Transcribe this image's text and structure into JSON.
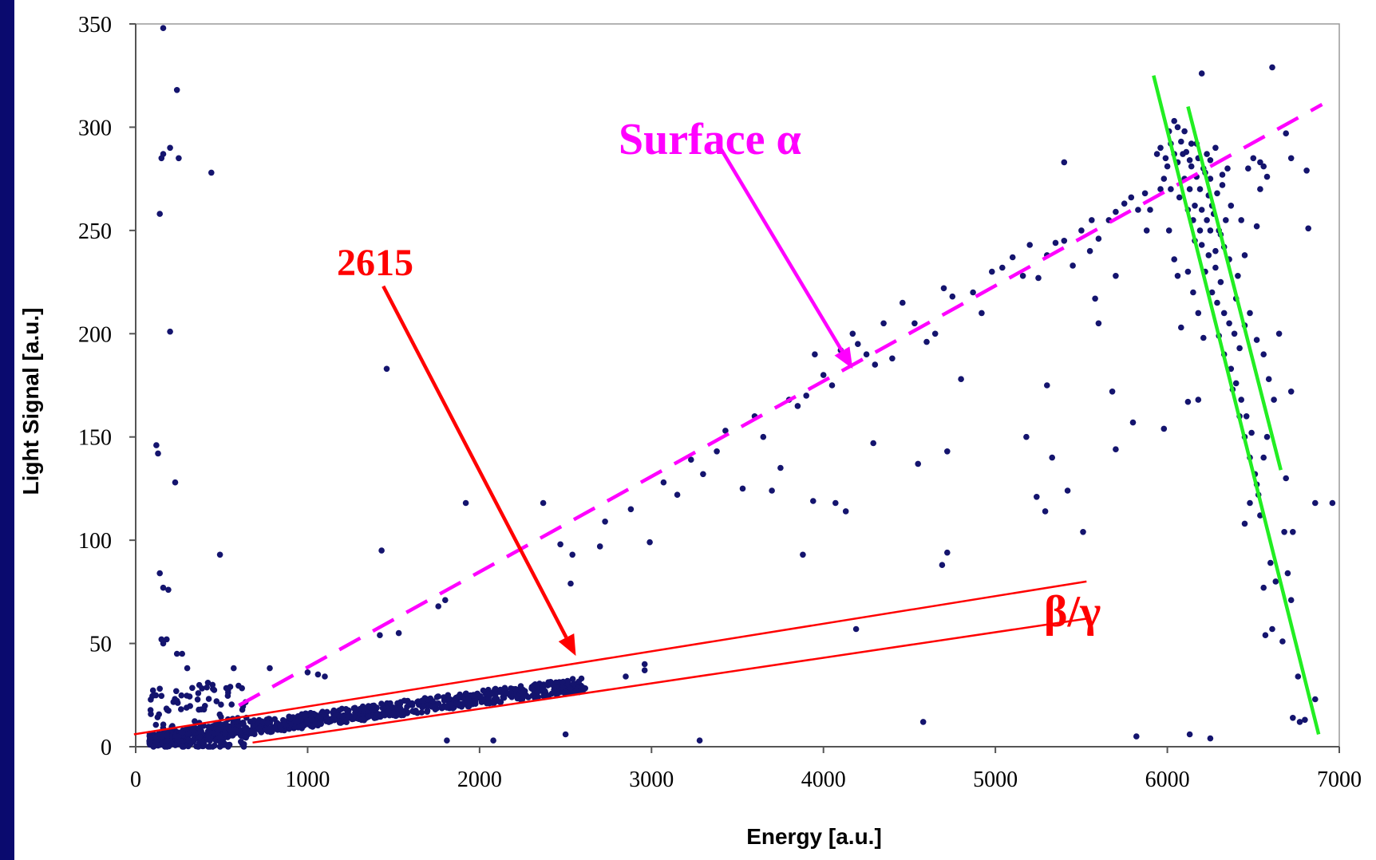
{
  "chart_data": {
    "type": "scatter",
    "xlabel": "Energy   [a.u.]",
    "ylabel": "Light Signal  [a.u.]",
    "xlim": [
      0,
      7000
    ],
    "ylim": [
      0,
      350
    ],
    "x_ticks": [
      "0",
      "1000",
      "2000",
      "3000",
      "4000",
      "5000",
      "6000",
      "7000"
    ],
    "y_ticks": [
      "0",
      "50",
      "100",
      "150",
      "200",
      "250",
      "300",
      "350"
    ],
    "grid": false,
    "marker_color": "#14146e",
    "annotations": {
      "surface_alpha": {
        "text": "Surface α",
        "color": "#ff00ff"
      },
      "line_2615": {
        "text": "2615",
        "color": "#ff0000"
      },
      "beta_gamma": {
        "text": "β/γ",
        "color": "#ff0000"
      }
    },
    "lines": [
      {
        "name": "alpha-band",
        "style": "dashed",
        "color": "#ff00ff",
        "x": [
          600,
          6900
        ],
        "y": [
          20,
          311
        ]
      },
      {
        "name": "beta-gamma-upper",
        "style": "solid",
        "color": "#ff0000",
        "x": [
          -10,
          5530
        ],
        "y": [
          6,
          80
        ]
      },
      {
        "name": "beta-gamma-lower",
        "style": "solid",
        "color": "#ff0000",
        "x": [
          680,
          5530
        ],
        "y": [
          2,
          62
        ]
      },
      {
        "name": "green-line-1",
        "style": "solid",
        "color": "#22ee22",
        "x": [
          5920,
          6880
        ],
        "y": [
          325,
          6
        ]
      },
      {
        "name": "green-line-2",
        "style": "solid",
        "color": "#22ee22",
        "x": [
          6120,
          6660
        ],
        "y": [
          310,
          134
        ]
      }
    ],
    "arrows": [
      {
        "name": "surface-alpha-arrow",
        "color": "#ff00ff",
        "from": [
          3400,
          290
        ],
        "to": [
          4170,
          183
        ]
      },
      {
        "name": "line-2615-arrow",
        "color": "#ff0000",
        "from": [
          1440,
          223
        ],
        "to": [
          2560,
          44
        ]
      }
    ],
    "points": [
      [
        160,
        348
      ],
      [
        240,
        318
      ],
      [
        150,
        285
      ],
      [
        160,
        287
      ],
      [
        200,
        290
      ],
      [
        250,
        285
      ],
      [
        140,
        258
      ],
      [
        440,
        278
      ],
      [
        200,
        201
      ],
      [
        1460,
        183
      ],
      [
        120,
        146
      ],
      [
        130,
        142
      ],
      [
        230,
        128
      ],
      [
        490,
        93
      ],
      [
        1430,
        95
      ],
      [
        140,
        84
      ],
      [
        160,
        77
      ],
      [
        190,
        76
      ],
      [
        150,
        52
      ],
      [
        180,
        52
      ],
      [
        160,
        50
      ],
      [
        240,
        45
      ],
      [
        270,
        45
      ],
      [
        300,
        38
      ],
      [
        420,
        31
      ],
      [
        470,
        22
      ],
      [
        570,
        38
      ],
      [
        780,
        38
      ],
      [
        1000,
        36
      ],
      [
        1060,
        35
      ],
      [
        1100,
        34
      ],
      [
        1420,
        54
      ],
      [
        1530,
        55
      ],
      [
        1760,
        68
      ],
      [
        1800,
        71
      ],
      [
        1920,
        118
      ],
      [
        2370,
        118
      ],
      [
        2470,
        98
      ],
      [
        2540,
        93
      ],
      [
        2530,
        79
      ],
      [
        2700,
        97
      ],
      [
        2730,
        109
      ],
      [
        2880,
        115
      ],
      [
        2990,
        99
      ],
      [
        2850,
        34
      ],
      [
        2960,
        37
      ],
      [
        2960,
        40
      ],
      [
        3070,
        128
      ],
      [
        3150,
        122
      ],
      [
        3230,
        139
      ],
      [
        3300,
        132
      ],
      [
        3380,
        143
      ],
      [
        3430,
        153
      ],
      [
        3530,
        125
      ],
      [
        3600,
        160
      ],
      [
        3650,
        150
      ],
      [
        3700,
        124
      ],
      [
        3750,
        135
      ],
      [
        3800,
        168
      ],
      [
        3850,
        165
      ],
      [
        3900,
        170
      ],
      [
        3950,
        190
      ],
      [
        4000,
        180
      ],
      [
        4050,
        175
      ],
      [
        4100,
        192
      ],
      [
        4170,
        200
      ],
      [
        4200,
        195
      ],
      [
        4250,
        190
      ],
      [
        4300,
        185
      ],
      [
        4350,
        205
      ],
      [
        4400,
        188
      ],
      [
        4460,
        215
      ],
      [
        4530,
        205
      ],
      [
        4600,
        196
      ],
      [
        4650,
        200
      ],
      [
        4700,
        222
      ],
      [
        4750,
        218
      ],
      [
        4800,
        178
      ],
      [
        4870,
        220
      ],
      [
        4920,
        210
      ],
      [
        4980,
        230
      ],
      [
        5040,
        232
      ],
      [
        5100,
        237
      ],
      [
        5160,
        228
      ],
      [
        5200,
        243
      ],
      [
        5250,
        227
      ],
      [
        5300,
        238
      ],
      [
        5350,
        244
      ],
      [
        5400,
        245
      ],
      [
        5450,
        233
      ],
      [
        5500,
        250
      ],
      [
        5560,
        255
      ],
      [
        5600,
        246
      ],
      [
        5660,
        255
      ],
      [
        5700,
        259
      ],
      [
        5750,
        263
      ],
      [
        5790,
        266
      ],
      [
        5830,
        260
      ],
      [
        5870,
        268
      ],
      [
        5400,
        283
      ],
      [
        5700,
        228
      ],
      [
        5550,
        240
      ],
      [
        5600,
        205
      ],
      [
        5580,
        217
      ],
      [
        4290,
        147
      ],
      [
        4550,
        137
      ],
      [
        4720,
        143
      ],
      [
        4690,
        88
      ],
      [
        4720,
        94
      ],
      [
        3880,
        93
      ],
      [
        3940,
        119
      ],
      [
        4070,
        118
      ],
      [
        4130,
        114
      ],
      [
        5300,
        175
      ],
      [
        5330,
        140
      ],
      [
        5420,
        124
      ],
      [
        5180,
        150
      ],
      [
        5240,
        121
      ],
      [
        5290,
        114
      ],
      [
        5510,
        104
      ],
      [
        5700,
        144
      ],
      [
        5680,
        172
      ],
      [
        5800,
        157
      ],
      [
        5980,
        154
      ],
      [
        4190,
        57
      ],
      [
        4580,
        12
      ],
      [
        3280,
        3
      ],
      [
        5820,
        5
      ],
      [
        6130,
        6
      ],
      [
        6250,
        4
      ],
      [
        1810,
        3
      ],
      [
        2080,
        3
      ],
      [
        2500,
        6
      ],
      [
        6200,
        326
      ],
      [
        6610,
        329
      ],
      [
        6690,
        297
      ],
      [
        6720,
        285
      ],
      [
        6810,
        279
      ],
      [
        6820,
        251
      ],
      [
        6720,
        172
      ],
      [
        6690,
        130
      ],
      [
        6860,
        118
      ],
      [
        6960,
        118
      ],
      [
        6730,
        104
      ],
      [
        6680,
        104
      ],
      [
        6600,
        89
      ],
      [
        6630,
        80
      ],
      [
        6700,
        84
      ],
      [
        6720,
        71
      ],
      [
        6560,
        77
      ],
      [
        6610,
        57
      ],
      [
        6570,
        54
      ],
      [
        6670,
        51
      ],
      [
        6760,
        34
      ],
      [
        6800,
        13
      ],
      [
        6730,
        14
      ],
      [
        6770,
        12
      ],
      [
        6860,
        23
      ],
      [
        6010,
        298
      ],
      [
        6040,
        303
      ],
      [
        6080,
        293
      ],
      [
        6110,
        288
      ],
      [
        6140,
        281
      ],
      [
        6170,
        276
      ],
      [
        6060,
        283
      ],
      [
        6100,
        275
      ],
      [
        6130,
        270
      ],
      [
        6160,
        262
      ],
      [
        6190,
        270
      ],
      [
        6220,
        278
      ],
      [
        6250,
        284
      ],
      [
        6040,
        287
      ],
      [
        6000,
        281
      ],
      [
        5980,
        275
      ],
      [
        6020,
        270
      ],
      [
        6070,
        266
      ],
      [
        6120,
        260
      ],
      [
        6150,
        255
      ],
      [
        6190,
        250
      ],
      [
        6230,
        255
      ],
      [
        6260,
        262
      ],
      [
        6290,
        268
      ],
      [
        6320,
        272
      ],
      [
        6350,
        280
      ],
      [
        6100,
        298
      ],
      [
        6140,
        292
      ],
      [
        6180,
        285
      ],
      [
        6210,
        280
      ],
      [
        6240,
        267
      ],
      [
        6270,
        258
      ],
      [
        6300,
        250
      ],
      [
        6330,
        242
      ],
      [
        6360,
        236
      ],
      [
        6200,
        243
      ],
      [
        6240,
        238
      ],
      [
        6280,
        232
      ],
      [
        6310,
        225
      ],
      [
        6260,
        220
      ],
      [
        6290,
        215
      ],
      [
        6330,
        210
      ],
      [
        6360,
        205
      ],
      [
        6390,
        200
      ],
      [
        6420,
        193
      ],
      [
        6300,
        199
      ],
      [
        6330,
        190
      ],
      [
        6370,
        183
      ],
      [
        6400,
        176
      ],
      [
        6430,
        168
      ],
      [
        6460,
        160
      ],
      [
        6490,
        152
      ],
      [
        6380,
        173
      ],
      [
        6420,
        160
      ],
      [
        6450,
        150
      ],
      [
        6480,
        140
      ],
      [
        6510,
        132
      ],
      [
        6530,
        122
      ],
      [
        6540,
        112
      ],
      [
        6560,
        140
      ],
      [
        6580,
        150
      ],
      [
        6520,
        127
      ],
      [
        6480,
        118
      ],
      [
        6450,
        108
      ],
      [
        6400,
        217
      ],
      [
        6410,
        228
      ],
      [
        6430,
        255
      ],
      [
        6470,
        280
      ],
      [
        6500,
        285
      ],
      [
        6540,
        283
      ],
      [
        6560,
        281
      ],
      [
        6580,
        276
      ],
      [
        6540,
        270
      ],
      [
        6520,
        252
      ],
      [
        6450,
        238
      ],
      [
        6480,
        210
      ],
      [
        6520,
        197
      ],
      [
        6560,
        190
      ],
      [
        6590,
        178
      ],
      [
        6620,
        168
      ],
      [
        6650,
        200
      ],
      [
        6450,
        204
      ],
      [
        5960,
        290
      ],
      [
        5940,
        287
      ],
      [
        5960,
        270
      ],
      [
        5900,
        260
      ],
      [
        5880,
        250
      ],
      [
        6010,
        250
      ],
      [
        6120,
        230
      ],
      [
        6150,
        220
      ],
      [
        6180,
        210
      ],
      [
        6210,
        198
      ],
      [
        6080,
        203
      ],
      [
        6120,
        167
      ],
      [
        6180,
        168
      ],
      [
        6040,
        236
      ],
      [
        6060,
        228
      ],
      [
        6160,
        245
      ],
      [
        6200,
        260
      ],
      [
        6220,
        230
      ],
      [
        6250,
        250
      ],
      [
        6280,
        240
      ],
      [
        6310,
        248
      ],
      [
        6340,
        255
      ],
      [
        6370,
        262
      ],
      [
        6280,
        290
      ],
      [
        6320,
        277
      ],
      [
        6250,
        275
      ],
      [
        6060,
        300
      ],
      [
        6090,
        287
      ],
      [
        6020,
        292
      ],
      [
        5990,
        285
      ],
      [
        6130,
        284
      ],
      [
        6170,
        292
      ],
      [
        6230,
        287
      ]
    ],
    "beta_gamma_band": {
      "x_range": [
        80,
        2620
      ],
      "relation": "y ≈ 0.0108 × x + 2 ± 3 (dense band)"
    },
    "low_energy_cluster": {
      "x_range": [
        80,
        650
      ],
      "y_range": [
        0,
        30
      ]
    }
  }
}
